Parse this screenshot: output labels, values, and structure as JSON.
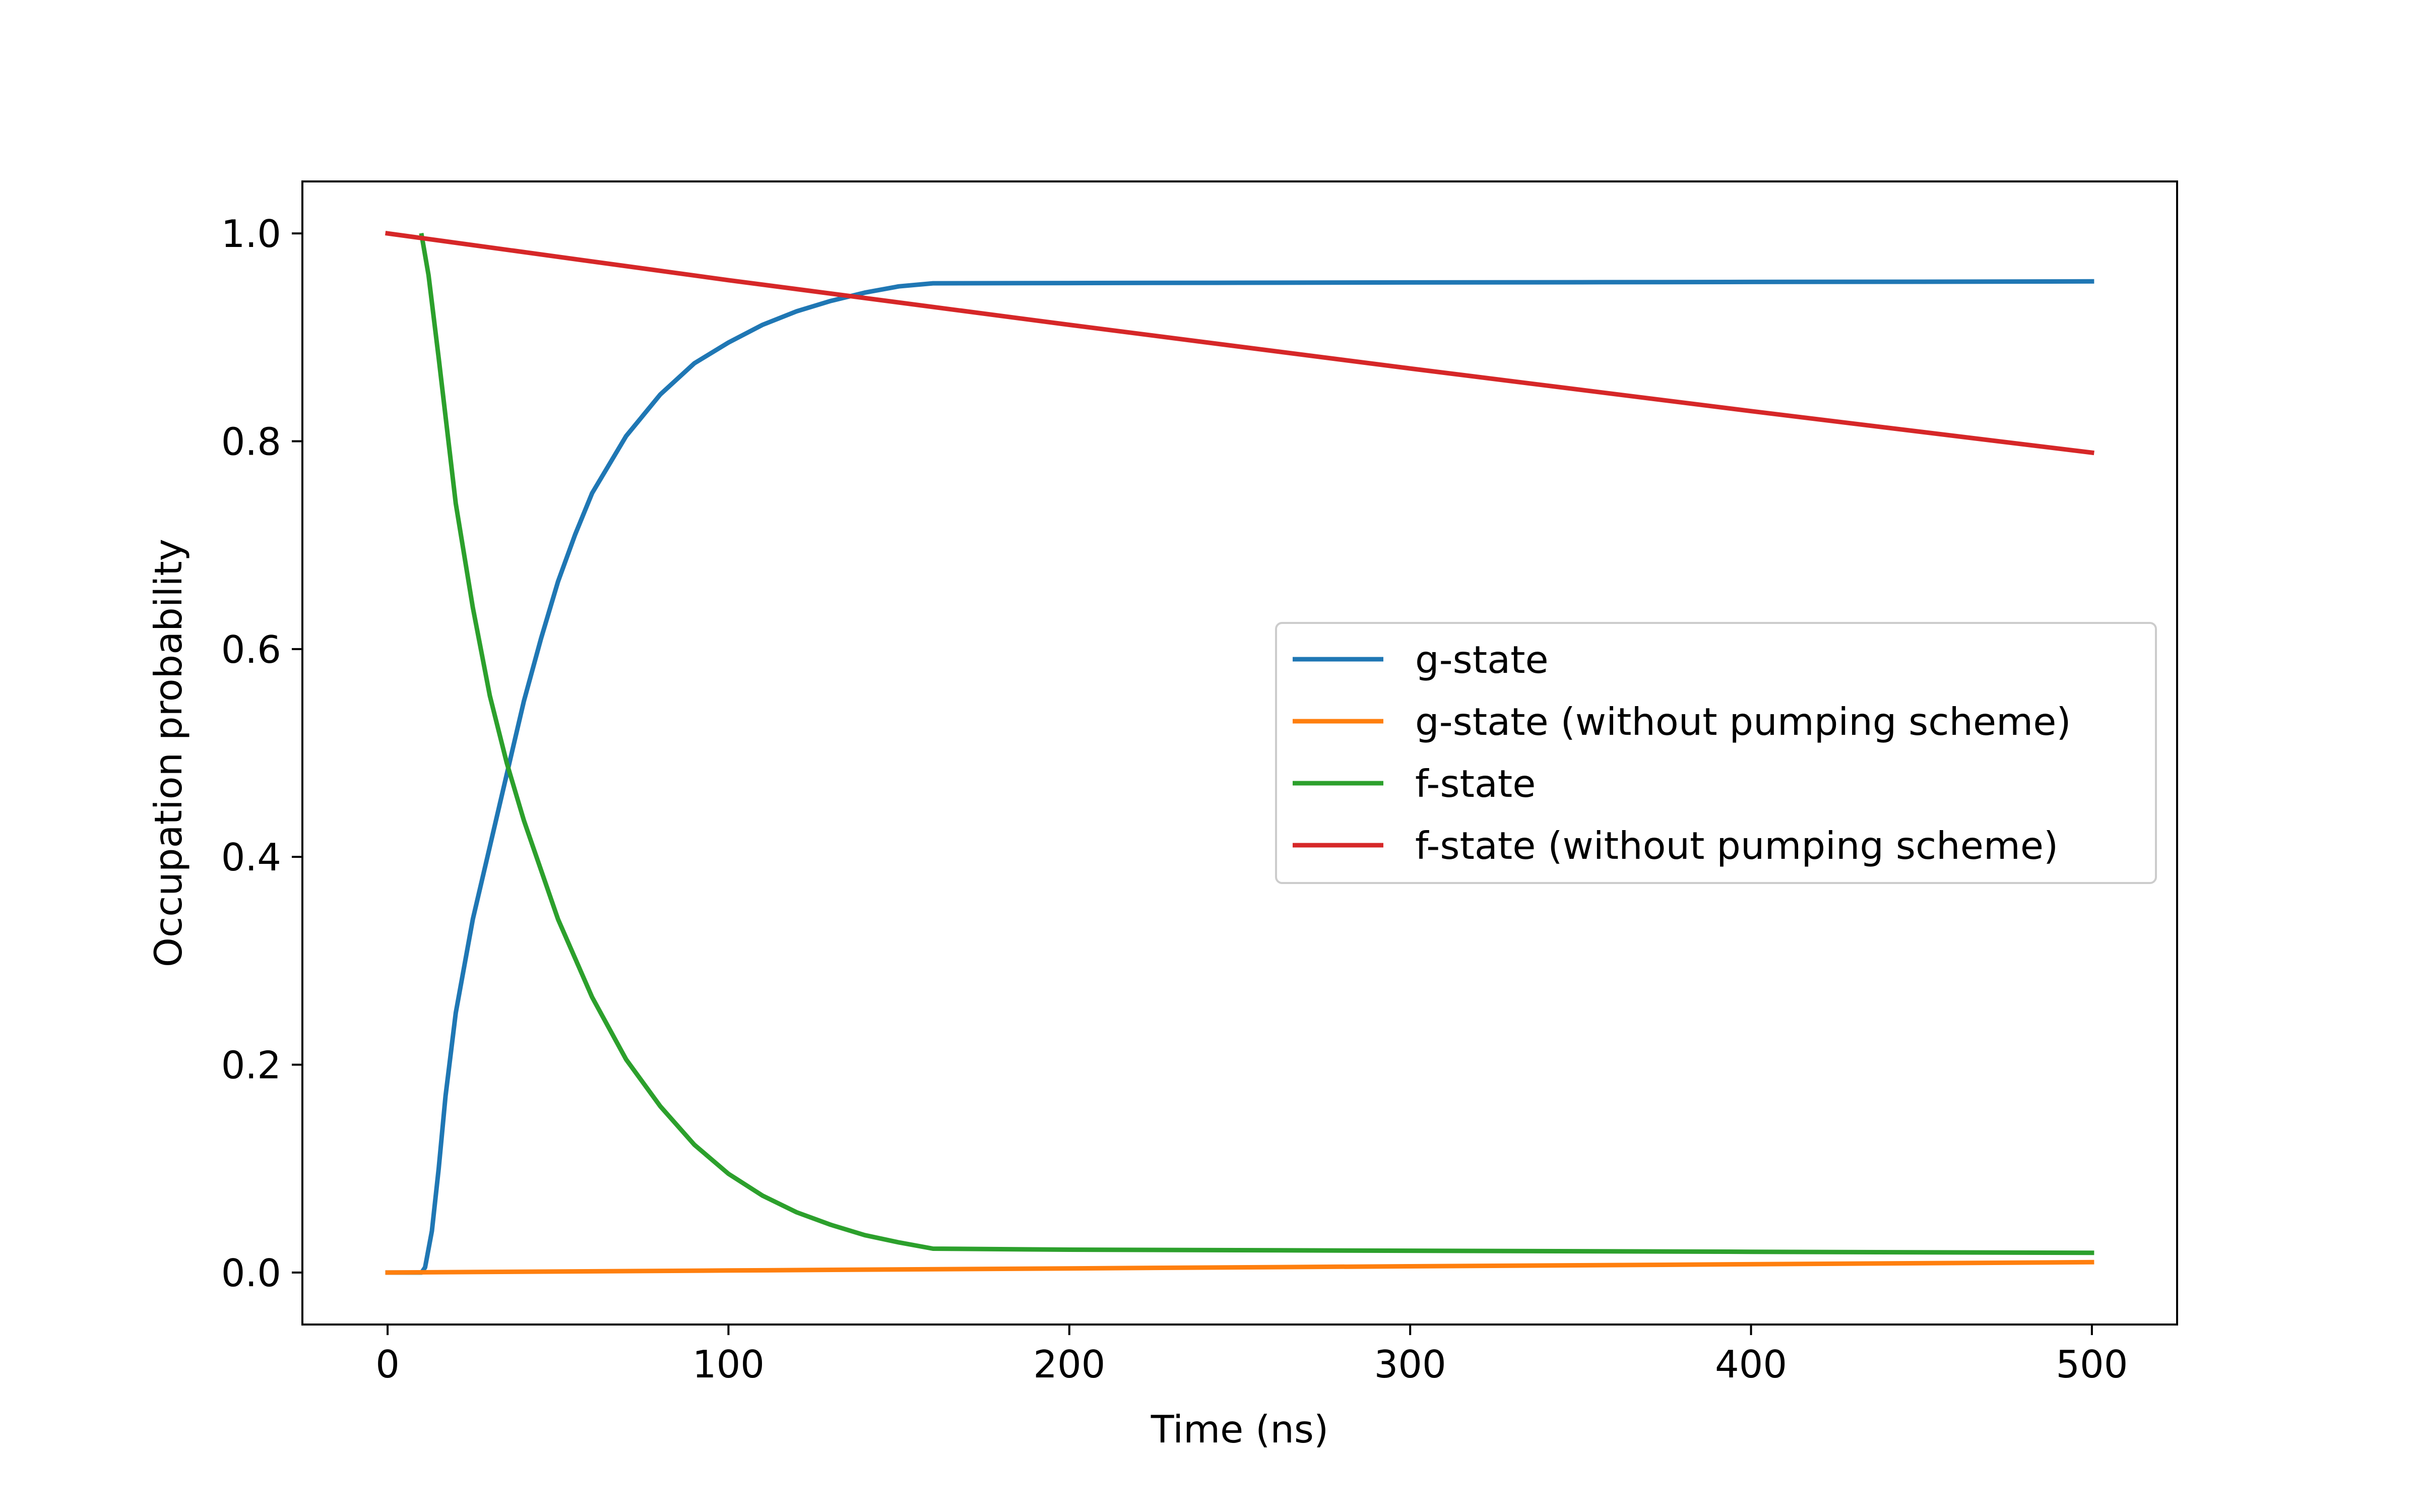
{
  "chart_data": {
    "type": "line",
    "title": "",
    "xlabel": "Time (ns)",
    "ylabel": "Occupation probability",
    "xlim": [
      -25,
      525
    ],
    "ylim": [
      -0.05,
      1.05
    ],
    "xticks": [
      0,
      100,
      200,
      300,
      400,
      500
    ],
    "xtick_labels": [
      "0",
      "100",
      "200",
      "300",
      "400",
      "500"
    ],
    "yticks": [
      0.0,
      0.2,
      0.4,
      0.6,
      0.8,
      1.0
    ],
    "ytick_labels": [
      "0.0",
      "0.2",
      "0.4",
      "0.6",
      "0.8",
      "1.0"
    ],
    "grid": false,
    "legend_position": "center-right",
    "series": [
      {
        "name": "g-state",
        "color": "#1f77b4",
        "x": [
          0,
          5,
          10,
          11,
          13,
          15,
          17,
          20,
          25,
          30,
          35,
          40,
          45,
          50,
          55,
          60,
          70,
          80,
          90,
          100,
          110,
          120,
          130,
          140,
          150,
          160,
          200,
          250,
          300,
          350,
          400,
          450,
          500
        ],
        "y": [
          0.0,
          0.0,
          0.0,
          0.005,
          0.04,
          0.1,
          0.17,
          0.25,
          0.34,
          0.41,
          0.48,
          0.55,
          0.61,
          0.665,
          0.71,
          0.75,
          0.805,
          0.845,
          0.875,
          0.895,
          0.912,
          0.925,
          0.935,
          0.943,
          0.949,
          0.952,
          0.9522,
          0.9525,
          0.9528,
          0.953,
          0.9533,
          0.9535,
          0.9538
        ]
      },
      {
        "name": "g-state (without pumping scheme)",
        "color": "#ff7f0e",
        "x": [
          0,
          100,
          200,
          300,
          400,
          500
        ],
        "y": [
          0.0,
          0.002,
          0.004,
          0.006,
          0.008,
          0.01
        ]
      },
      {
        "name": "f-state",
        "color": "#2ca02c",
        "x": [
          10,
          12,
          15,
          20,
          25,
          30,
          35,
          40,
          50,
          60,
          70,
          80,
          90,
          100,
          110,
          120,
          130,
          140,
          150,
          160,
          200,
          300,
          400,
          500
        ],
        "y": [
          0.998,
          0.96,
          0.88,
          0.74,
          0.64,
          0.555,
          0.49,
          0.435,
          0.34,
          0.265,
          0.205,
          0.16,
          0.123,
          0.095,
          0.074,
          0.058,
          0.046,
          0.036,
          0.029,
          0.023,
          0.022,
          0.021,
          0.02,
          0.019
        ]
      },
      {
        "name": "f-state (without pumping scheme)",
        "color": "#d62728",
        "x": [
          0,
          100,
          200,
          300,
          400,
          500
        ],
        "y": [
          1.0,
          0.955,
          0.912,
          0.87,
          0.829,
          0.789
        ]
      }
    ]
  }
}
